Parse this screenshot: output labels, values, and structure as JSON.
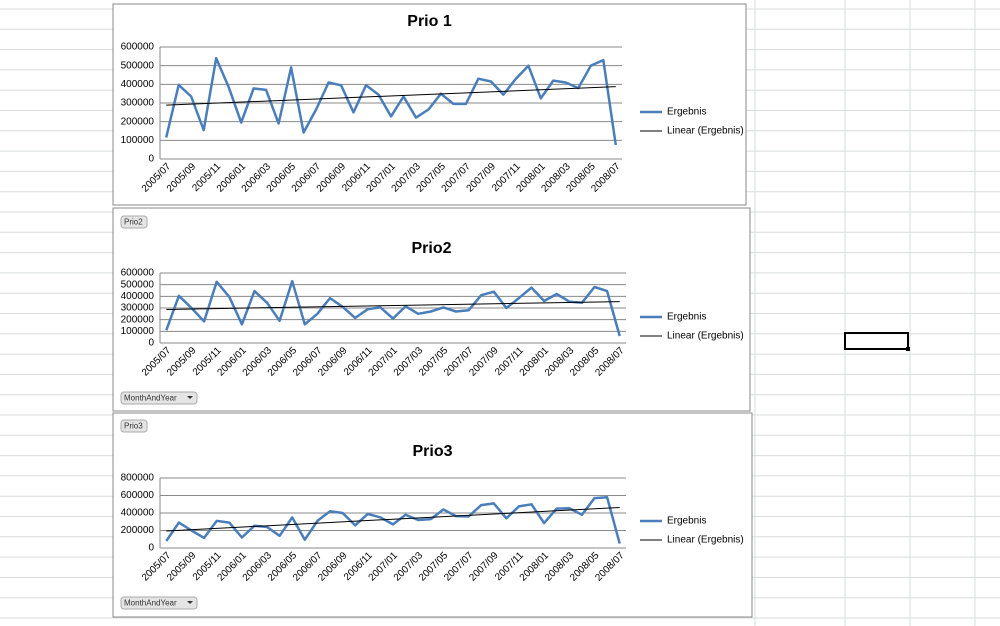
{
  "chart_data": [
    {
      "type": "line",
      "title": "Prio 1",
      "categories": [
        "2005/07",
        null,
        "2005/09",
        null,
        "2005/11",
        null,
        "2006/01",
        null,
        "2006/03",
        null,
        "2006/05",
        null,
        "2006/07",
        null,
        "2006/09",
        null,
        "2006/11",
        null,
        "2007/01",
        null,
        "2007/03",
        null,
        "2007/05",
        null,
        "2007/07",
        null,
        "2007/09",
        null,
        "2007/11",
        null,
        "2008/01",
        null,
        "2008/03",
        null,
        "2008/05",
        null,
        "2008/07"
      ],
      "series": [
        {
          "name": "Ergebnis",
          "color": "#4a7ebb",
          "values": [
            115000,
            397000,
            335000,
            155000,
            540000,
            385000,
            195000,
            378000,
            370000,
            190000,
            490000,
            142000,
            265000,
            410000,
            395000,
            250000,
            395000,
            345000,
            228000,
            335000,
            222000,
            265000,
            350000,
            295000,
            295000,
            430000,
            415000,
            345000,
            430000,
            500000,
            325000,
            420000,
            410000,
            380000,
            500000,
            530000,
            75000
          ]
        }
      ],
      "trendline_label": "Linear (Ergebnis)",
      "trendline_color": "#000000",
      "ylim": [
        0,
        600000
      ],
      "yticks": [
        0,
        100000,
        200000,
        300000,
        400000,
        500000,
        600000
      ],
      "grid": true,
      "legend": "right"
    },
    {
      "type": "line",
      "title": "Prio2",
      "report_filter": "Prio2",
      "axis_field": "MonthAndYear",
      "categories": [
        "2005/07",
        null,
        "2005/09",
        null,
        "2005/11",
        null,
        "2006/01",
        null,
        "2006/03",
        null,
        "2006/05",
        null,
        "2006/07",
        null,
        "2006/09",
        null,
        "2006/11",
        null,
        "2007/01",
        null,
        "2007/03",
        null,
        "2007/05",
        null,
        "2007/07",
        null,
        "2007/09",
        null,
        "2007/11",
        null,
        "2008/01",
        null,
        "2008/03",
        null,
        "2008/05",
        null,
        "2008/07"
      ],
      "series": [
        {
          "name": "Ergebnis",
          "color": "#4a7ebb",
          "values": [
            110000,
            405000,
            300000,
            185000,
            525000,
            395000,
            160000,
            445000,
            345000,
            190000,
            530000,
            160000,
            250000,
            385000,
            310000,
            215000,
            290000,
            305000,
            210000,
            315000,
            250000,
            270000,
            305000,
            270000,
            280000,
            410000,
            440000,
            300000,
            385000,
            475000,
            360000,
            420000,
            355000,
            345000,
            480000,
            445000,
            60000
          ]
        }
      ],
      "trendline_label": "Linear (Ergebnis)",
      "trendline_color": "#000000",
      "ylim": [
        0,
        600000
      ],
      "yticks": [
        0,
        100000,
        200000,
        300000,
        400000,
        500000,
        600000
      ],
      "grid": true,
      "legend": "right"
    },
    {
      "type": "line",
      "title": "Prio3",
      "report_filter": "Prio3",
      "axis_field": "MonthAndYear",
      "categories": [
        "2005/07",
        null,
        "2005/09",
        null,
        "2005/11",
        null,
        "2006/01",
        null,
        "2006/03",
        null,
        "2006/05",
        null,
        "2006/07",
        null,
        "2006/09",
        null,
        "2006/11",
        null,
        "2007/01",
        null,
        "2007/03",
        null,
        "2007/05",
        null,
        "2007/07",
        null,
        "2007/09",
        null,
        "2007/11",
        null,
        "2008/01",
        null,
        "2008/03",
        null,
        "2008/05",
        null,
        "2008/07"
      ],
      "series": [
        {
          "name": "Ergebnis",
          "color": "#4a7ebb",
          "values": [
            80000,
            290000,
            200000,
            115000,
            310000,
            290000,
            120000,
            255000,
            240000,
            140000,
            350000,
            95000,
            310000,
            420000,
            400000,
            260000,
            390000,
            350000,
            270000,
            380000,
            320000,
            330000,
            440000,
            365000,
            360000,
            490000,
            510000,
            340000,
            475000,
            500000,
            285000,
            450000,
            455000,
            380000,
            570000,
            580000,
            50000
          ]
        }
      ],
      "trendline_label": "Linear (Ergebnis)",
      "trendline_color": "#000000",
      "ylim": [
        0,
        800000
      ],
      "yticks": [
        0,
        200000,
        400000,
        600000,
        800000
      ],
      "grid": true,
      "legend": "right"
    }
  ]
}
